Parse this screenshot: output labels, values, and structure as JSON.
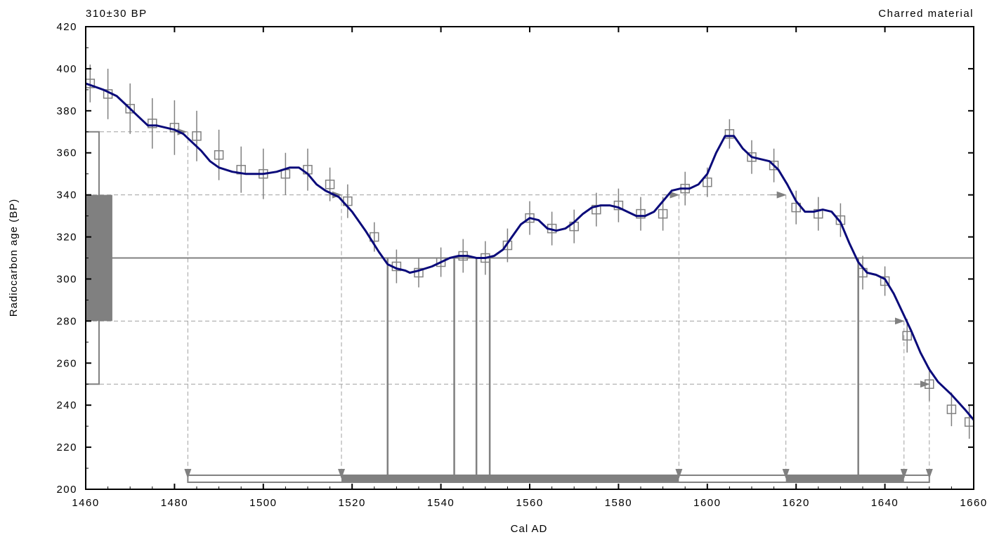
{
  "chart_data": {
    "type": "line",
    "title_left": "310±30 BP",
    "title_right": "Charred material",
    "xlabel": "Cal AD",
    "ylabel": "Radiocarbon age (BP)",
    "xlim": [
      1460,
      1660
    ],
    "ylim": [
      200,
      420
    ],
    "x_ticks": [
      "1460",
      "1480",
      "1500",
      "1520",
      "1540",
      "1560",
      "1580",
      "1600",
      "1620",
      "1640",
      "1660"
    ],
    "y_ticks": [
      "200",
      "220",
      "240",
      "260",
      "280",
      "300",
      "320",
      "340",
      "360",
      "380",
      "400",
      "420"
    ],
    "grid": false,
    "calibration_curve": {
      "color": "#0a0a7a",
      "x": [
        1460,
        1464,
        1467,
        1470,
        1472,
        1474,
        1476,
        1478,
        1480,
        1482,
        1484,
        1486,
        1488,
        1490,
        1493,
        1496,
        1498,
        1500,
        1503,
        1506,
        1508,
        1510,
        1512,
        1514,
        1517,
        1520,
        1523,
        1526,
        1528,
        1530,
        1532,
        1533,
        1535,
        1538,
        1540,
        1542,
        1544,
        1546,
        1548,
        1550,
        1552,
        1554,
        1556,
        1558,
        1560,
        1562,
        1564,
        1566,
        1568,
        1570,
        1572,
        1574,
        1576,
        1578,
        1580,
        1582,
        1584,
        1586,
        1588,
        1590,
        1592,
        1594,
        1596,
        1598,
        1600,
        1602,
        1604,
        1606,
        1608,
        1610,
        1612,
        1614,
        1616,
        1618,
        1620,
        1622,
        1624,
        1626,
        1628,
        1630,
        1632,
        1634,
        1636,
        1638,
        1640,
        1642,
        1644,
        1646,
        1648,
        1650,
        1652,
        1655,
        1658,
        1660
      ],
      "y": [
        393,
        390,
        387,
        381,
        377,
        373,
        373,
        372,
        371,
        369,
        365,
        361,
        356,
        353,
        351,
        350,
        350,
        350,
        351,
        353,
        353,
        350,
        345,
        342,
        339,
        332,
        323,
        313,
        307,
        305,
        304,
        303,
        304,
        306,
        308,
        310,
        311,
        311,
        310,
        310,
        311,
        314,
        320,
        326,
        329,
        328,
        324,
        323,
        324,
        327,
        331,
        334,
        335,
        335,
        334,
        332,
        330,
        330,
        332,
        337,
        342,
        343,
        343,
        345,
        350,
        360,
        368,
        368,
        362,
        358,
        357,
        356,
        352,
        345,
        337,
        332,
        332,
        333,
        332,
        327,
        317,
        308,
        303,
        302,
        300,
        293,
        284,
        275,
        265,
        257,
        251,
        245,
        238,
        233
      ]
    },
    "data_points": {
      "color": "#808080",
      "points": [
        {
          "x": 1461,
          "y": 393,
          "err": 9
        },
        {
          "x": 1465,
          "y": 388,
          "err": 12
        },
        {
          "x": 1470,
          "y": 381,
          "err": 12
        },
        {
          "x": 1475,
          "y": 374,
          "err": 12
        },
        {
          "x": 1480,
          "y": 372,
          "err": 13
        },
        {
          "x": 1485,
          "y": 368,
          "err": 12
        },
        {
          "x": 1490,
          "y": 359,
          "err": 12
        },
        {
          "x": 1495,
          "y": 352,
          "err": 11
        },
        {
          "x": 1500,
          "y": 350,
          "err": 12
        },
        {
          "x": 1505,
          "y": 350,
          "err": 10
        },
        {
          "x": 1510,
          "y": 352,
          "err": 10
        },
        {
          "x": 1515,
          "y": 345,
          "err": 8
        },
        {
          "x": 1519,
          "y": 337,
          "err": 8
        },
        {
          "x": 1525,
          "y": 320,
          "err": 7
        },
        {
          "x": 1530,
          "y": 306,
          "err": 8
        },
        {
          "x": 1535,
          "y": 303,
          "err": 7
        },
        {
          "x": 1540,
          "y": 308,
          "err": 7
        },
        {
          "x": 1545,
          "y": 311,
          "err": 8
        },
        {
          "x": 1550,
          "y": 310,
          "err": 8
        },
        {
          "x": 1555,
          "y": 316,
          "err": 8
        },
        {
          "x": 1560,
          "y": 329,
          "err": 8
        },
        {
          "x": 1565,
          "y": 324,
          "err": 8
        },
        {
          "x": 1570,
          "y": 325,
          "err": 8
        },
        {
          "x": 1575,
          "y": 333,
          "err": 8
        },
        {
          "x": 1580,
          "y": 335,
          "err": 8
        },
        {
          "x": 1585,
          "y": 331,
          "err": 8
        },
        {
          "x": 1590,
          "y": 331,
          "err": 8
        },
        {
          "x": 1595,
          "y": 343,
          "err": 8
        },
        {
          "x": 1600,
          "y": 346,
          "err": 7
        },
        {
          "x": 1605,
          "y": 369,
          "err": 7
        },
        {
          "x": 1610,
          "y": 358,
          "err": 8
        },
        {
          "x": 1615,
          "y": 354,
          "err": 8
        },
        {
          "x": 1620,
          "y": 334,
          "err": 8
        },
        {
          "x": 1625,
          "y": 331,
          "err": 8
        },
        {
          "x": 1630,
          "y": 328,
          "err": 8
        },
        {
          "x": 1635,
          "y": 303,
          "err": 8
        },
        {
          "x": 1640,
          "y": 299,
          "err": 7
        },
        {
          "x": 1645,
          "y": 273,
          "err": 8
        },
        {
          "x": 1650,
          "y": 250,
          "err": 8
        },
        {
          "x": 1655,
          "y": 238,
          "err": 8
        },
        {
          "x": 1659,
          "y": 232,
          "err": 8
        }
      ]
    },
    "measured_age": {
      "mean": 310,
      "sigma1": [
        280,
        340
      ],
      "sigma2": [
        250,
        370
      ]
    },
    "one_sigma_ranges": [
      [
        1528,
        1543
      ],
      [
        1548,
        1551
      ]
    ],
    "two_sigma_ranges": [
      [
        1483,
        1650
      ]
    ],
    "probability_ranges_1sigma": [
      [
        1517.6,
        1593.6
      ],
      [
        1617.7,
        1644.3
      ]
    ],
    "intercept_guides": [
      {
        "y": 370,
        "x_start": 1460,
        "x_end": 1483,
        "arrow_x": 1483
      },
      {
        "y": 340,
        "x_start": 1460,
        "x_end": 1617.7,
        "arrows_on_line": [
          1517.6,
          1593.6,
          1617.7
        ]
      },
      {
        "y": 280,
        "x_start": 1460,
        "x_end": 1644.3,
        "arrows_on_line": [
          1644.3
        ]
      },
      {
        "y": 250,
        "x_start": 1460,
        "x_end": 1650,
        "arrows_on_line": [
          1650
        ]
      }
    ],
    "intercept_verticals": [
      1528,
      1543,
      1548,
      1551,
      1634
    ],
    "ticks_down": [
      1483,
      1517.6,
      1593.6,
      1617.7,
      1644.3,
      1650
    ]
  }
}
